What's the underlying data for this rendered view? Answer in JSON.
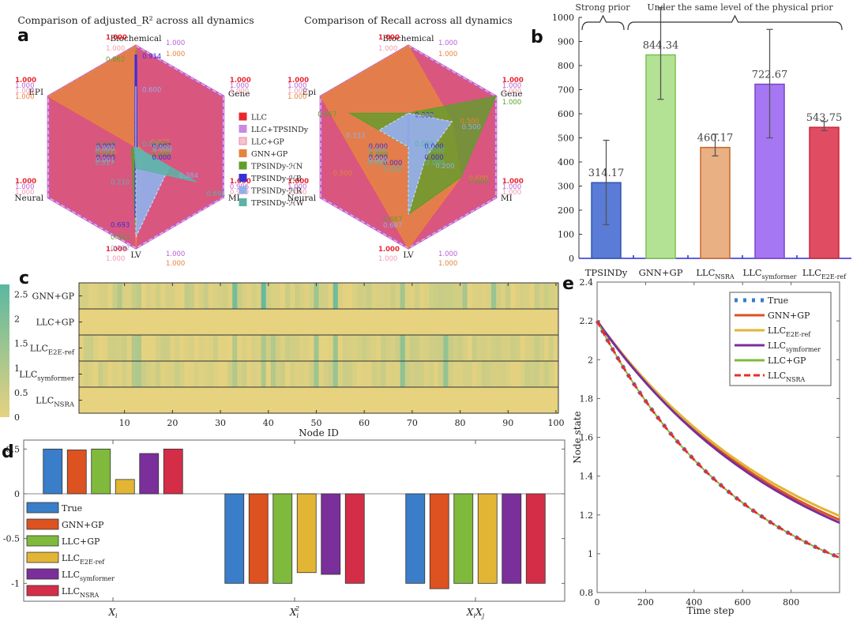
{
  "panel_letters": {
    "a": "a",
    "b": "b",
    "c": "c",
    "d": "d",
    "e": "e"
  },
  "chart_data": [
    {
      "id": "a1",
      "type": "radar",
      "title": "Comparison of adjusted_R² across all dynamics",
      "axes": [
        "Biochemical",
        "Gene",
        "MI",
        "LV",
        "Neural",
        "EPI"
      ],
      "range": [
        0,
        1
      ],
      "series": [
        {
          "name": "LLC",
          "color": "#e8262f",
          "values": [
            1.0,
            1.0,
            1.0,
            1.0,
            1.0,
            1.0
          ]
        },
        {
          "name": "LLC+TPSINDy",
          "color": "#b85fd6",
          "values": [
            1.0,
            1.0,
            0.996,
            1.0,
            1.0,
            1.0
          ]
        },
        {
          "name": "LLC+GP",
          "color": "#f09ab0",
          "values": [
            1.0,
            1.0,
            0.999,
            1.0,
            1.0,
            1.0
          ]
        },
        {
          "name": "GNN+GP",
          "color": "#e8823c",
          "values": [
            1.0,
            0.025,
            0.088,
            1.0,
            0.0,
            1.0
          ]
        },
        {
          "name": "TPSINDy-ℋN",
          "color": "#5f9e2a",
          "values": [
            0.962,
            0.0,
            0.0,
            0.843,
            0.051,
            0.0
          ]
        },
        {
          "name": "TPSINDy-ℋB",
          "color": "#3a2ed8",
          "values": [
            0.914,
            0.007,
            0.0,
            0.693,
            0.0,
            0.002
          ]
        },
        {
          "name": "TPSINDy-ℋR",
          "color": "#93aee8",
          "values": [
            0.6,
            0.0,
            0.384,
            0.892,
            0.001,
            0.0
          ]
        },
        {
          "name": "TPSINDy-ℋW",
          "color": "#5cb3a4",
          "values": [
            0.0,
            0.0,
            0.691,
            0.21,
            0.017,
            0.007
          ]
        }
      ]
    },
    {
      "id": "a2",
      "type": "radar",
      "title": "Comparison of Recall across all dynamics",
      "axes": [
        "Biochemical",
        "Gene",
        "MI",
        "LV",
        "Neural",
        "Epi"
      ],
      "range": [
        0,
        1
      ],
      "series": [
        {
          "name": "LLC",
          "color": "#e8262f",
          "values": [
            1.0,
            1.0,
            1.0,
            1.0,
            1.0,
            1.0
          ]
        },
        {
          "name": "LLC+TPSINDy",
          "color": "#b85fd6",
          "values": [
            1.0,
            1.0,
            1.0,
            1.0,
            1.0,
            1.0
          ]
        },
        {
          "name": "LLC+GP",
          "color": "#f09ab0",
          "values": [
            1.0,
            1.0,
            1.0,
            1.0,
            1.0,
            1.0
          ]
        },
        {
          "name": "GNN+GP",
          "color": "#e8823c",
          "values": [
            1.0,
            0.5,
            0.6,
            1.0,
            0.5,
            1.0
          ]
        },
        {
          "name": "TPSINDy-ℋN",
          "color": "#5f9e2a",
          "values": [
            0.333,
            1.0,
            0.6,
            0.667,
            0.0,
            0.667
          ]
        },
        {
          "name": "TPSINDy-ℋB",
          "color": "#3a2ed8",
          "values": [
            0.333,
            0.0,
            0.0,
            0.0,
            0.0,
            0.0
          ]
        },
        {
          "name": "TPSINDy-ℋR",
          "color": "#93aee8",
          "values": [
            0.333,
            0.5,
            0.2,
            0.667,
            0.0,
            0.333
          ]
        },
        {
          "name": "TPSINDy-ℋW",
          "color": "#5cb3a4",
          "values": [
            0.0,
            0.0,
            0.0,
            0.0,
            0.0,
            0.0
          ]
        }
      ]
    },
    {
      "id": "b",
      "type": "bar",
      "title": "",
      "annotations": [
        "Strong prior",
        "Under the same level of the physical prior"
      ],
      "categories": [
        "TPSINDy",
        "GNN+GP",
        "LLC_NSRA",
        "LLC_symformer",
        "LLC_E2E-ref"
      ],
      "category_main": [
        "TPSINDy",
        "GNN+GP",
        "LLC",
        "LLC",
        "LLC"
      ],
      "category_sub": [
        "",
        "",
        "NSRA",
        "symformer",
        "E2E-ref"
      ],
      "values": [
        314.17,
        844.34,
        460.17,
        722.67,
        543.75
      ],
      "error_low": [
        140,
        660,
        425,
        500,
        530
      ],
      "error_high": [
        490,
        1040,
        515,
        950,
        568
      ],
      "value_labels": [
        "314.17",
        "844.34",
        "460.17",
        "722.67",
        "543.75"
      ],
      "colors": [
        "#5a7bd6",
        "#b3e295",
        "#e9b083",
        "#a577f2",
        "#e04c62"
      ],
      "edge_colors": [
        "#3256b0",
        "#7cc24a",
        "#c8682a",
        "#7a44c8",
        "#c52a3c"
      ],
      "ylim": [
        0,
        1000
      ],
      "yticks": [
        0,
        100,
        200,
        300,
        400,
        500,
        600,
        700,
        800,
        900,
        1000
      ]
    },
    {
      "id": "c",
      "type": "heatmap",
      "xlabel": "Node ID",
      "rows": [
        "GNN+GP",
        "LLC+GP",
        "LLC_E2E-ref",
        "LLC_symformer",
        "LLC_NSRA"
      ],
      "row_main": [
        "GNN+GP",
        "LLC+GP",
        "LLC",
        "LLC",
        "LLC"
      ],
      "row_sub": [
        "",
        "",
        "E2E-ref",
        "symformer",
        "NSRA"
      ],
      "xticks": [
        10,
        20,
        30,
        40,
        50,
        60,
        70,
        80,
        90,
        100
      ],
      "x_range": [
        1,
        100
      ],
      "colorbar_ticks": [
        "0",
        "0.5",
        "1",
        "1.5",
        "2",
        "2.5"
      ],
      "clim": [
        0,
        2.7
      ],
      "colormap": [
        "#e6d27f",
        "#5bb8a0"
      ],
      "highlight_nodes": {
        "GNN+GP": {
          "9": 1.0,
          "12": 0.6,
          "13": 0.8,
          "23": 0.7,
          "33": 2.2,
          "39": 2.5,
          "50": 1.4,
          "54": 2.3,
          "68": 1.3,
          "81": 1.2,
          "87": 1.5
        },
        "LLC+GP": {},
        "LLC_E2E-ref": {
          "12": 1.0,
          "13": 1.1,
          "33": 1.0,
          "39": 1.1,
          "41": 1.0,
          "50": 1.4,
          "54": 1.5,
          "68": 1.7,
          "77": 1.6
        },
        "LLC_symformer": {
          "12": 1.0,
          "13": 1.1,
          "33": 1.0,
          "39": 1.1,
          "41": 1.0,
          "50": 1.4,
          "54": 1.5,
          "68": 1.7,
          "77": 1.6
        },
        "LLC_NSRA": {}
      }
    },
    {
      "id": "d",
      "type": "bar",
      "categories": [
        "X_i",
        "X_i^2",
        "X_iX_j"
      ],
      "series": [
        {
          "name": "True",
          "color": "#3a7dc9",
          "values": [
            0.5,
            -1.0,
            -1.0
          ]
        },
        {
          "name": "GNN+GP",
          "color": "#dc5220",
          "values": [
            0.49,
            -1.0,
            -1.06
          ]
        },
        {
          "name": "LLC+GP",
          "color": "#7fba3c",
          "values": [
            0.5,
            -1.0,
            -1.0
          ]
        },
        {
          "name": "LLC_E2E-ref",
          "color": "#e2b535",
          "values": [
            0.16,
            -0.88,
            -1.0
          ]
        },
        {
          "name": "LLC_symformer",
          "color": "#7b2f9a",
          "values": [
            0.45,
            -0.9,
            -1.0
          ]
        },
        {
          "name": "LLC_NSRA",
          "color": "#d42d48",
          "values": [
            0.5,
            -1.0,
            -1.0
          ]
        }
      ],
      "legend_main": [
        "True",
        "GNN+GP",
        "LLC+GP",
        "LLC",
        "LLC",
        "LLC"
      ],
      "legend_sub": [
        "",
        "",
        "",
        "E2E-ref",
        "symformer",
        "NSRA"
      ],
      "ylim": [
        -1.2,
        0.6
      ],
      "yticks": [
        "0.5",
        "0",
        "-0.5",
        "-1"
      ],
      "xtick_main": [
        "X",
        "X",
        "X"
      ],
      "xtick_sub": [
        "i",
        "i",
        "i"
      ],
      "legend": "top-left"
    },
    {
      "id": "e",
      "type": "line",
      "xlabel": "Time step",
      "ylabel": "Node state",
      "xlim": [
        0,
        1000
      ],
      "ylim": [
        0.8,
        2.4
      ],
      "xticks": [
        "0",
        "200",
        "400",
        "600",
        "800"
      ],
      "yticks": [
        "0.8",
        "1",
        "1.2",
        "1.4",
        "1.6",
        "1.8",
        "2",
        "2.2",
        "2.4"
      ],
      "series": [
        {
          "name": "True",
          "color": "#3a7dc9",
          "style": "dotted",
          "start": 2.2,
          "end": 0.98
        },
        {
          "name": "GNN+GP",
          "color": "#dc5220",
          "style": "solid",
          "start": 2.2,
          "end": 1.175
        },
        {
          "name": "LLC_E2E-ref",
          "color": "#e2b535",
          "style": "solid",
          "start": 2.2,
          "end": 1.195
        },
        {
          "name": "LLC_symformer",
          "color": "#7b2f9a",
          "style": "solid",
          "start": 2.2,
          "end": 1.16
        },
        {
          "name": "LLC+GP",
          "color": "#7fba3c",
          "style": "solid",
          "start": 2.2,
          "end": 0.98
        },
        {
          "name": "LLC_NSRA",
          "color": "#ee2a2a",
          "style": "dashed",
          "start": 2.2,
          "end": 0.98
        }
      ],
      "legend_main": [
        "True",
        "GNN+GP",
        "LLC",
        "LLC",
        "LLC+GP",
        "LLC"
      ],
      "legend_sub": [
        "",
        "",
        "E2E-ref",
        "symformer",
        "",
        "NSRA"
      ],
      "legend": "top-right"
    }
  ]
}
